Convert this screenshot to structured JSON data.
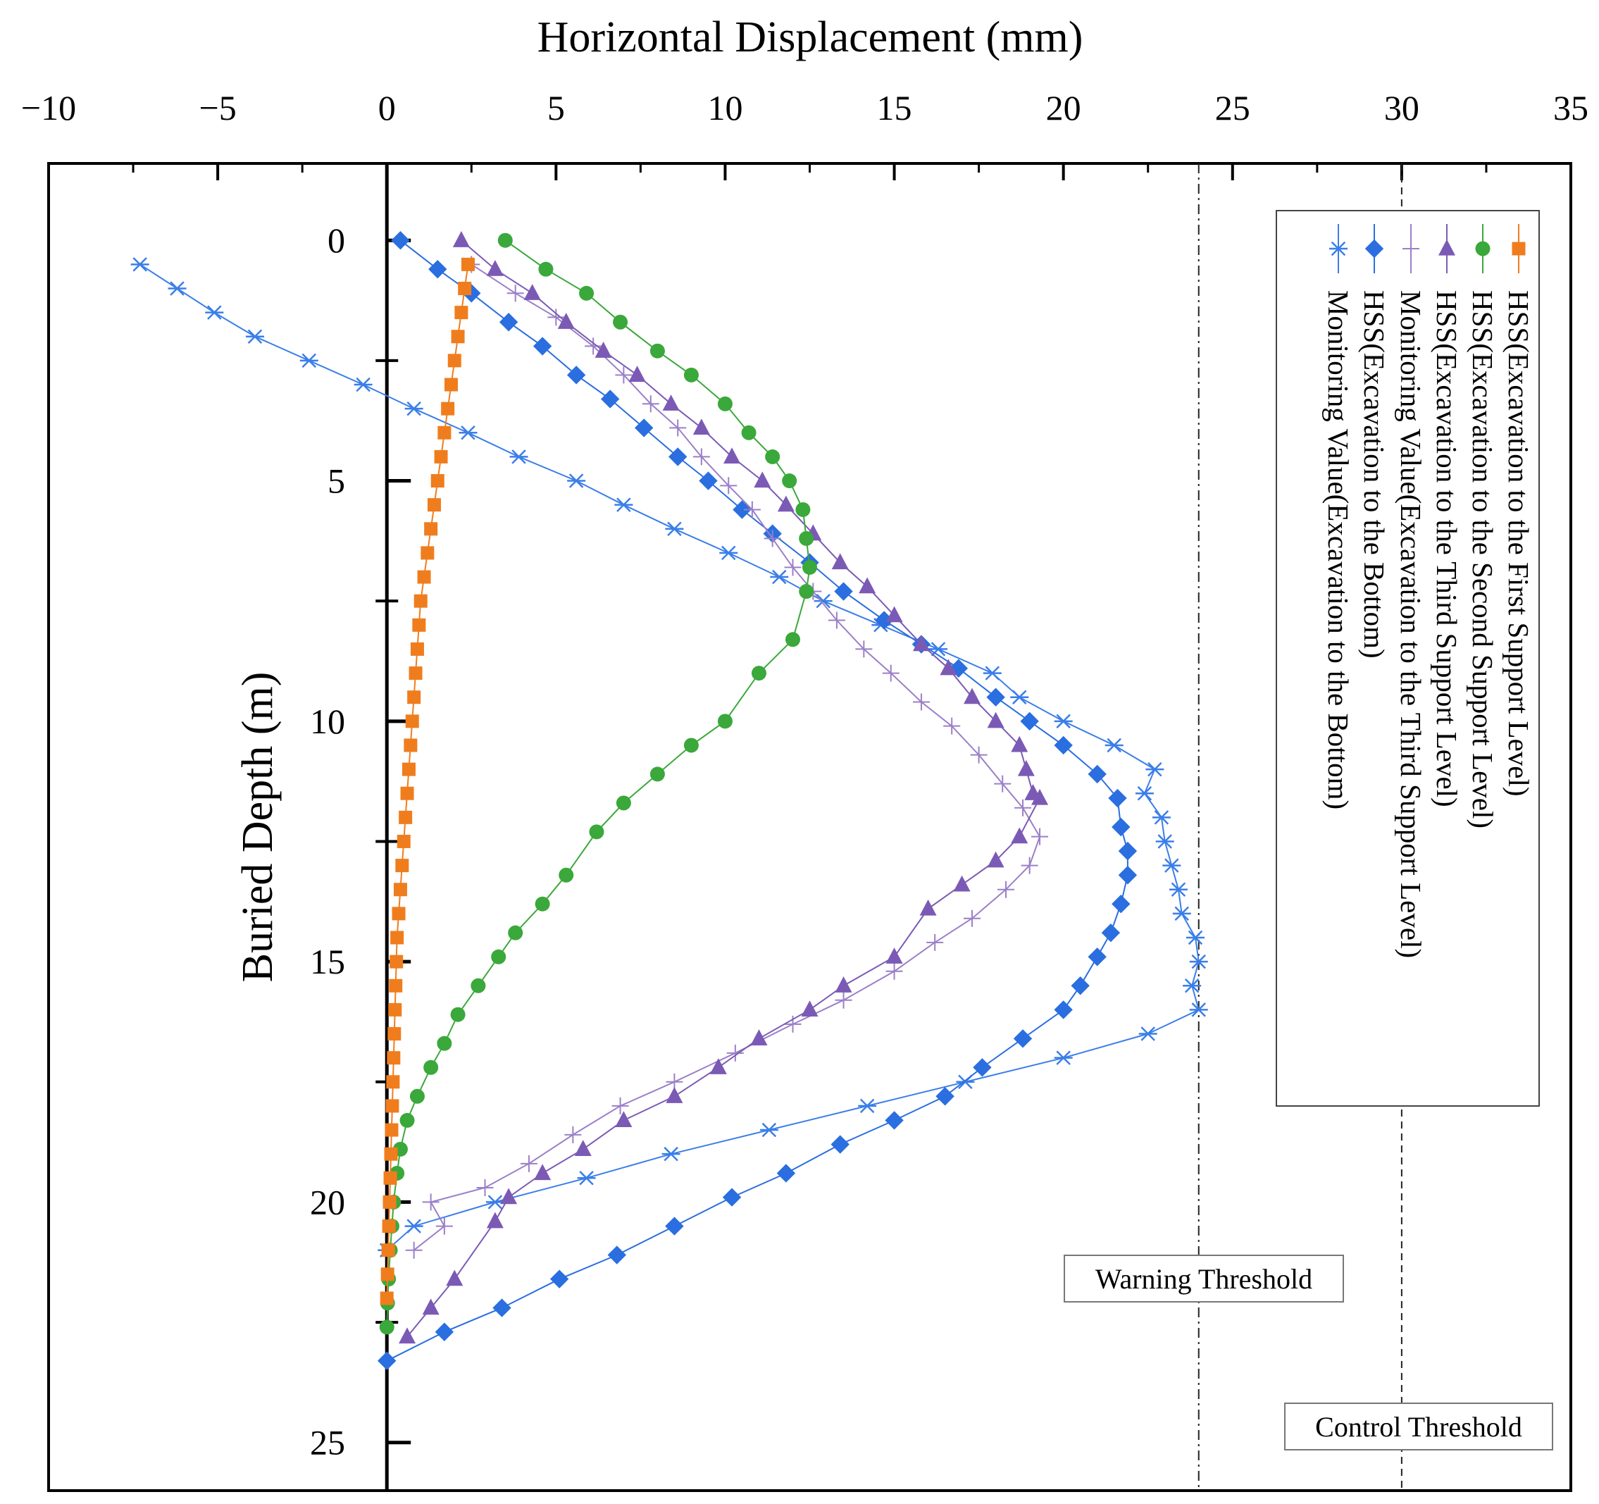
{
  "chart_data": {
    "type": "line",
    "xlabel": "Horizontal Displacement (mm)",
    "ylabel": "Buried Depth (m)",
    "xlim": [
      -10,
      35
    ],
    "ylim": [
      26,
      -1.6
    ],
    "x_ticks": [
      "−10",
      "−5",
      "0",
      "5",
      "10",
      "15",
      "20",
      "25",
      "30",
      "35"
    ],
    "y_ticks": [
      "0",
      "5",
      "10",
      "15",
      "20",
      "25"
    ],
    "y_axis_at_x": 0,
    "x_axis_position": "top",
    "legend_position": "top-right",
    "grid": false,
    "thresholds": [
      {
        "label": "Warning Threshold",
        "x": 24,
        "style": "dash-dot"
      },
      {
        "label": "Control Threshold",
        "x": 30,
        "style": "dashed"
      }
    ],
    "series": [
      {
        "name": "HSS(Excavation to the First Support Level)",
        "color": "#f07d1d",
        "marker": "square",
        "x": [
          2.4,
          2.3,
          2.2,
          2.1,
          2.0,
          1.9,
          1.8,
          1.7,
          1.6,
          1.5,
          1.4,
          1.3,
          1.2,
          1.1,
          1.0,
          0.95,
          0.9,
          0.85,
          0.8,
          0.75,
          0.7,
          0.65,
          0.6,
          0.55,
          0.5,
          0.45,
          0.4,
          0.35,
          0.3,
          0.28,
          0.26,
          0.24,
          0.22,
          0.2,
          0.18,
          0.16,
          0.14,
          0.12,
          0.1,
          0.08,
          0.06,
          0.04,
          0.02,
          0.0
        ],
        "y": [
          0.5,
          1.0,
          1.5,
          2.0,
          2.5,
          3.0,
          3.5,
          4.0,
          4.5,
          5.0,
          5.5,
          6.0,
          6.5,
          7.0,
          7.5,
          8.0,
          8.5,
          9.0,
          9.5,
          10.0,
          10.5,
          11.0,
          11.5,
          12.0,
          12.5,
          13.0,
          13.5,
          14.0,
          14.5,
          15.0,
          15.5,
          16.0,
          16.5,
          17.0,
          17.5,
          18.0,
          18.5,
          19.0,
          19.5,
          20.0,
          20.5,
          21.0,
          21.5,
          22.0
        ]
      },
      {
        "name": "HSS(Excavation to the Second Support Level)",
        "color": "#3aa83a",
        "marker": "circle",
        "x": [
          3.5,
          4.7,
          5.9,
          6.9,
          8.0,
          9.0,
          10.0,
          10.7,
          11.4,
          11.9,
          12.3,
          12.4,
          12.5,
          12.4,
          12.0,
          11.0,
          10.0,
          9.0,
          8.0,
          7.0,
          6.2,
          5.3,
          4.6,
          3.8,
          3.3,
          2.7,
          2.1,
          1.7,
          1.3,
          0.9,
          0.6,
          0.4,
          0.3,
          0.2,
          0.15,
          0.1,
          0.05,
          0.02,
          0.0
        ],
        "y": [
          0.0,
          0.6,
          1.1,
          1.7,
          2.3,
          2.8,
          3.4,
          4.0,
          4.5,
          5.0,
          5.6,
          6.2,
          6.8,
          7.3,
          8.3,
          9.0,
          10.0,
          10.5,
          11.1,
          11.7,
          12.3,
          13.2,
          13.8,
          14.4,
          14.9,
          15.5,
          16.1,
          16.7,
          17.2,
          17.8,
          18.3,
          18.9,
          19.4,
          20.0,
          20.5,
          21.0,
          21.6,
          22.1,
          22.6
        ]
      },
      {
        "name": "HSS(Excavation to the Third Support Level)",
        "color": "#7b5ab5",
        "marker": "triangle",
        "x": [
          2.2,
          3.2,
          4.3,
          5.3,
          6.4,
          7.4,
          8.4,
          9.3,
          10.2,
          11.1,
          11.8,
          12.6,
          13.4,
          14.2,
          15.0,
          15.8,
          16.6,
          17.3,
          18.0,
          18.7,
          18.9,
          19.1,
          19.3,
          18.7,
          18.0,
          17.0,
          16.0,
          15.0,
          13.5,
          12.5,
          11.0,
          9.8,
          8.5,
          7.0,
          5.8,
          4.6,
          3.6,
          3.2,
          2.0,
          1.3,
          0.6
        ],
        "y": [
          0.0,
          0.6,
          1.1,
          1.7,
          2.3,
          2.8,
          3.4,
          3.9,
          4.5,
          5.0,
          5.5,
          6.1,
          6.7,
          7.2,
          7.8,
          8.4,
          8.9,
          9.5,
          10.0,
          10.5,
          11.0,
          11.5,
          11.6,
          12.4,
          12.9,
          13.4,
          13.9,
          14.9,
          15.5,
          16.0,
          16.6,
          17.2,
          17.8,
          18.3,
          18.9,
          19.4,
          19.9,
          20.4,
          21.6,
          22.2,
          22.8
        ]
      },
      {
        "name": "Monitoring Value(Excavation to the Third Support Level)",
        "color": "#9b7fc8",
        "marker": "plus",
        "x": [
          2.5,
          3.8,
          5.0,
          6.1,
          7.0,
          7.8,
          8.6,
          9.3,
          10.1,
          10.8,
          11.4,
          12.0,
          12.6,
          13.3,
          14.1,
          14.9,
          15.8,
          16.7,
          17.5,
          18.2,
          18.8,
          19.3,
          19.0,
          18.3,
          17.3,
          16.2,
          15.0,
          13.5,
          12.0,
          10.3,
          8.5,
          6.9,
          5.5,
          4.2,
          2.9,
          1.3,
          1.7,
          0.8
        ],
        "y": [
          0.5,
          1.1,
          1.6,
          2.2,
          2.8,
          3.4,
          3.9,
          4.5,
          5.1,
          5.6,
          6.2,
          6.8,
          7.3,
          7.9,
          8.5,
          9.0,
          9.6,
          10.1,
          10.7,
          11.3,
          11.8,
          12.4,
          13.0,
          13.5,
          14.1,
          14.6,
          15.2,
          15.8,
          16.3,
          16.9,
          17.5,
          18.0,
          18.6,
          19.2,
          19.7,
          20.0,
          20.5,
          21.0
        ]
      },
      {
        "name": "HSS(Excavation to the Bottom)",
        "color": "#2a6ee0",
        "marker": "diamond",
        "x": [
          0.4,
          1.5,
          2.5,
          3.6,
          4.6,
          5.6,
          6.6,
          7.6,
          8.6,
          9.5,
          10.5,
          11.4,
          12.5,
          13.5,
          14.7,
          15.8,
          16.9,
          18.0,
          19.0,
          20.0,
          21.0,
          21.6,
          21.7,
          21.9,
          21.9,
          21.7,
          21.4,
          21.0,
          20.5,
          20.0,
          18.8,
          17.6,
          16.5,
          15.0,
          13.4,
          11.8,
          10.2,
          8.5,
          6.8,
          5.1,
          3.4,
          1.7,
          0.0
        ],
        "y": [
          0.0,
          0.6,
          1.1,
          1.7,
          2.2,
          2.8,
          3.3,
          3.9,
          4.5,
          5.0,
          5.6,
          6.1,
          6.7,
          7.3,
          7.9,
          8.4,
          8.9,
          9.5,
          10.0,
          10.5,
          11.1,
          11.6,
          12.2,
          12.7,
          13.2,
          13.8,
          14.4,
          14.9,
          15.5,
          16.0,
          16.6,
          17.2,
          17.8,
          18.3,
          18.8,
          19.4,
          19.9,
          20.5,
          21.1,
          21.6,
          22.2,
          22.7,
          23.3
        ]
      },
      {
        "name": "Monitoring Value(Excavation to the Bottom)",
        "color": "#3a7ee8",
        "marker": "asterisk",
        "x": [
          -7.3,
          -6.2,
          -5.1,
          -3.9,
          -2.3,
          -0.7,
          0.8,
          2.4,
          3.9,
          5.6,
          7.0,
          8.5,
          10.1,
          11.6,
          12.9,
          14.6,
          16.3,
          17.9,
          18.7,
          20.0,
          21.5,
          22.7,
          22.4,
          22.9,
          23.0,
          23.2,
          23.4,
          23.5,
          23.9,
          24.0,
          23.8,
          24.0,
          22.5,
          20.0,
          17.1,
          14.2,
          11.3,
          8.4,
          5.9,
          3.2,
          0.8,
          0.0
        ],
        "y": [
          0.5,
          1.0,
          1.5,
          2.0,
          2.5,
          3.0,
          3.5,
          4.0,
          4.5,
          5.0,
          5.5,
          6.0,
          6.5,
          7.0,
          7.5,
          8.0,
          8.5,
          9.0,
          9.5,
          10.0,
          10.5,
          11.0,
          11.5,
          12.0,
          12.5,
          13.0,
          13.5,
          14.0,
          14.5,
          15.0,
          15.5,
          16.0,
          16.5,
          17.0,
          17.5,
          18.0,
          18.5,
          19.0,
          19.5,
          20.0,
          20.5,
          21.0
        ]
      }
    ]
  }
}
